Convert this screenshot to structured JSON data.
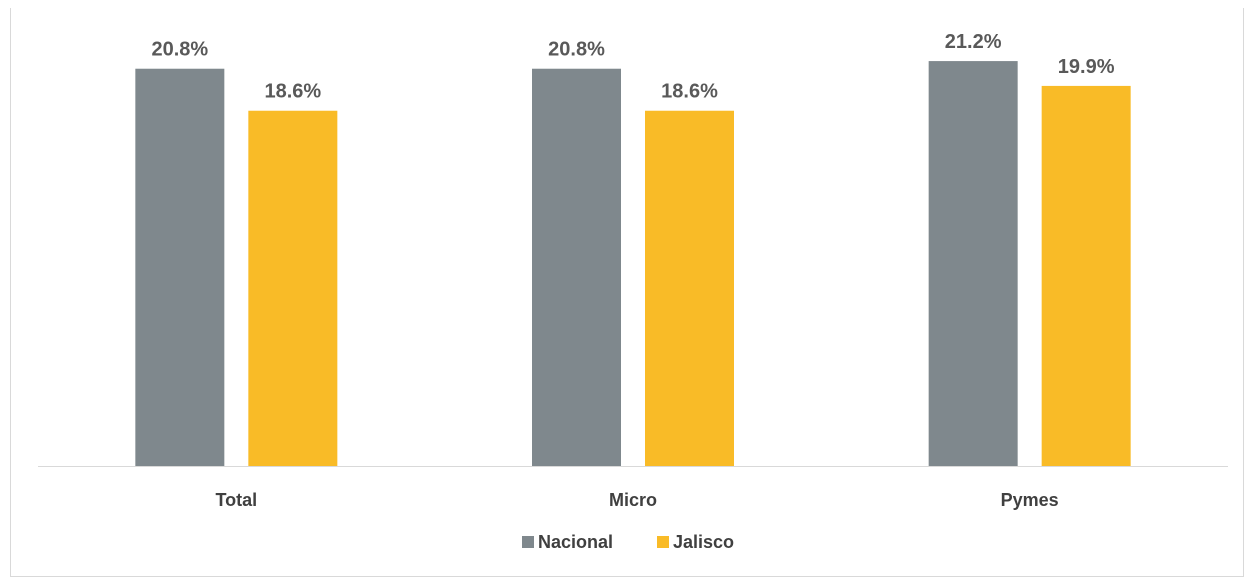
{
  "chart_data": {
    "type": "bar",
    "title": "",
    "categories": [
      "Total",
      "Micro",
      "Pymes"
    ],
    "series": [
      {
        "name": "Nacional",
        "values": [
          20.8,
          20.8,
          21.2
        ],
        "value_labels": [
          "20.8%",
          "20.8%",
          "21.2%"
        ],
        "color": "#7f888d"
      },
      {
        "name": "Jalisco",
        "values": [
          18.6,
          18.6,
          19.9
        ],
        "value_labels": [
          "18.6%",
          "18.6%",
          "19.9%"
        ],
        "color": "#f9bb27"
      }
    ],
    "ylim": [
      0,
      23
    ],
    "grid": false,
    "legend_position": "bottom",
    "xlabel": "",
    "ylabel": ""
  }
}
